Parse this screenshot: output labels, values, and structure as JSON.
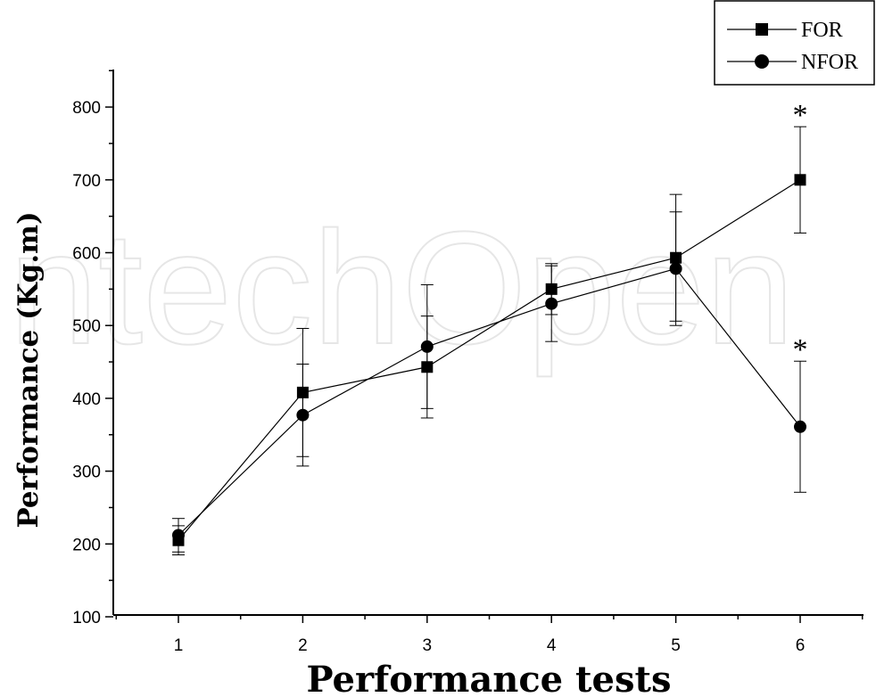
{
  "chart_data": {
    "type": "line",
    "xlabel": "Performance tests",
    "ylabel": "Performance (Kg.m)",
    "x": [
      1,
      2,
      3,
      4,
      5,
      6
    ],
    "xlim": [
      0.5,
      6.5
    ],
    "ylim": [
      100,
      850
    ],
    "yticks": [
      100,
      200,
      300,
      400,
      500,
      600,
      700,
      800
    ],
    "grid": false,
    "legend_position": "top-right",
    "series": [
      {
        "name": "FOR",
        "marker": "square",
        "values": [
          205,
          408,
          443,
          550,
          593,
          700
        ],
        "error": [
          20,
          88,
          70,
          35,
          87,
          73
        ]
      },
      {
        "name": "NFOR",
        "marker": "circle",
        "values": [
          212,
          377,
          471,
          530,
          578,
          361
        ],
        "error": [
          23,
          70,
          85,
          52,
          78,
          90
        ]
      }
    ],
    "annotations": [
      {
        "text": "*",
        "x": 6,
        "series": "FOR"
      },
      {
        "text": "*",
        "x": 6,
        "series": "NFOR"
      }
    ]
  },
  "watermark": "IntechOpen"
}
